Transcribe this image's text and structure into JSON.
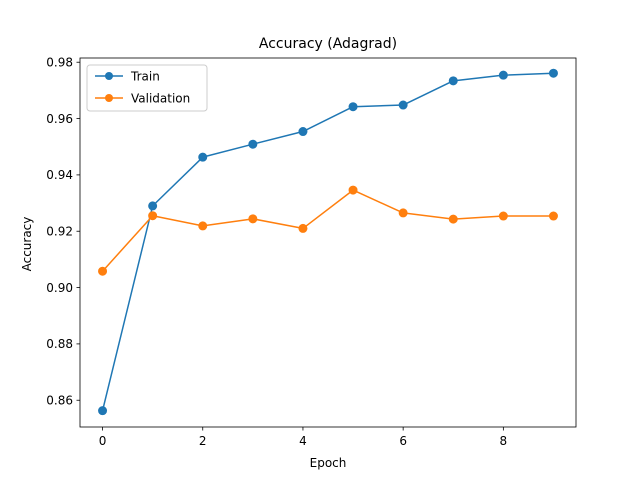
{
  "chart_data": {
    "type": "line",
    "title": "Accuracy (Adagrad)",
    "xlabel": "Epoch",
    "ylabel": "Accuracy",
    "x": [
      0,
      1,
      2,
      3,
      4,
      5,
      6,
      7,
      8,
      9
    ],
    "xlim": [
      -0.45,
      9.45
    ],
    "ylim": [
      0.8505,
      0.9815
    ],
    "xticks": [
      0,
      2,
      4,
      6,
      8
    ],
    "xtick_labels": [
      "0",
      "2",
      "4",
      "6",
      "8"
    ],
    "yticks": [
      0.86,
      0.88,
      0.9,
      0.92,
      0.94,
      0.96,
      0.98
    ],
    "ytick_labels": [
      "0.86",
      "0.88",
      "0.90",
      "0.92",
      "0.94",
      "0.96",
      "0.98"
    ],
    "grid": false,
    "legend_position": "upper-left",
    "series": [
      {
        "name": "Train",
        "color": "#1f77b4",
        "marker": "circle",
        "values": [
          0.8563,
          0.929,
          0.9463,
          0.9509,
          0.9554,
          0.9642,
          0.9648,
          0.9734,
          0.9754,
          0.9761
        ]
      },
      {
        "name": "Validation",
        "color": "#ff7f0e",
        "marker": "circle",
        "values": [
          0.9058,
          0.9255,
          0.9219,
          0.9244,
          0.921,
          0.9346,
          0.9265,
          0.9243,
          0.9254,
          0.9254
        ]
      }
    ]
  }
}
